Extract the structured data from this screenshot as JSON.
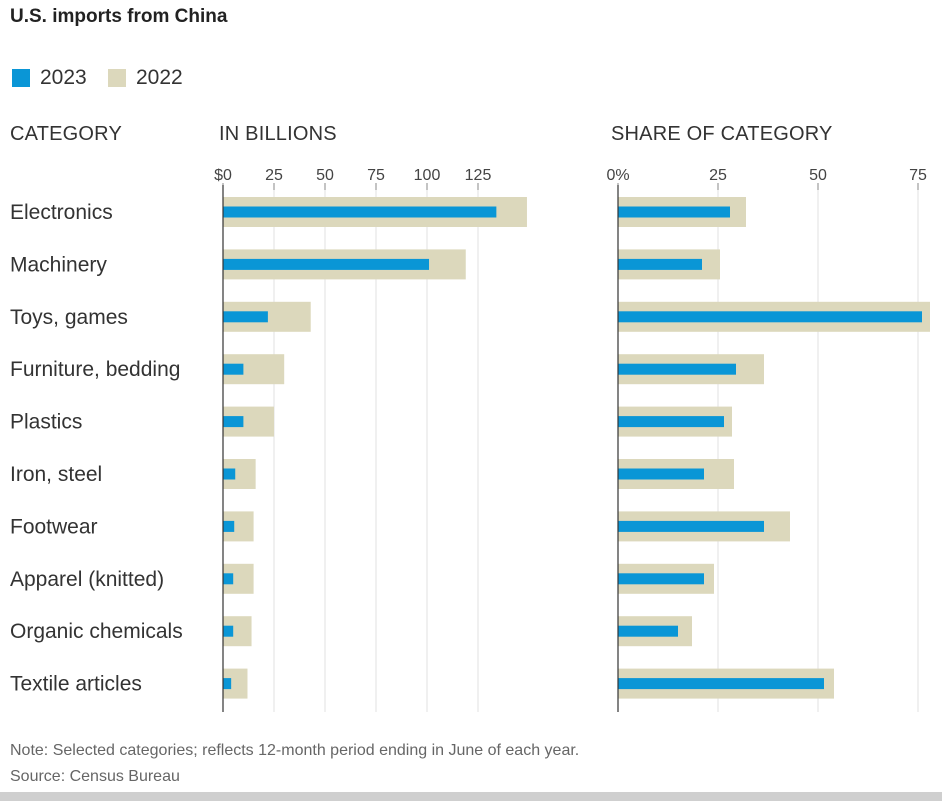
{
  "title": "U.S. imports from China",
  "legend": [
    {
      "label": "2023",
      "color": "#0a96d6"
    },
    {
      "label": "2022",
      "color": "#dcd8bc"
    }
  ],
  "headers": {
    "category": "CATEGORY",
    "billions": "IN BILLIONS",
    "share": "SHARE OF CATEGORY"
  },
  "chart_data": [
    {
      "type": "bar",
      "orientation": "horizontal",
      "title": "IN BILLIONS",
      "categories": [
        "Electronics",
        "Machinery",
        "Toys, games",
        "Furniture, bedding",
        "Plastics",
        "Iron, steel",
        "Footwear",
        "Apparel (knitted)",
        "Organic chemicals",
        "Textile articles"
      ],
      "series": [
        {
          "name": "2023",
          "color": "#0a96d6",
          "values": [
            134,
            101,
            22,
            10,
            10,
            6,
            5.5,
            5,
            5,
            4
          ]
        },
        {
          "name": "2022",
          "color": "#dcd8bc",
          "values": [
            149,
            119,
            43,
            30,
            25,
            16,
            15,
            15,
            14,
            12
          ]
        }
      ],
      "xlim": [
        0,
        150
      ],
      "ticks": [
        0,
        25,
        50,
        75,
        100,
        125
      ],
      "tick_labels": [
        "$0",
        "25",
        "50",
        "75",
        "100",
        "125"
      ],
      "grid": true
    },
    {
      "type": "bar",
      "orientation": "horizontal",
      "title": "SHARE OF CATEGORY",
      "categories": [
        "Electronics",
        "Machinery",
        "Toys, games",
        "Furniture, bedding",
        "Plastics",
        "Iron, steel",
        "Footwear",
        "Apparel (knitted)",
        "Organic chemicals",
        "Textile articles"
      ],
      "series": [
        {
          "name": "2023",
          "color": "#0a96d6",
          "values": [
            28,
            21,
            76,
            29.5,
            26.5,
            21.5,
            36.5,
            21.5,
            15,
            51.5
          ]
        },
        {
          "name": "2022",
          "color": "#dcd8bc",
          "values": [
            32,
            25.5,
            78,
            36.5,
            28.5,
            29,
            43,
            24,
            18.5,
            54
          ]
        }
      ],
      "xlim": [
        0,
        78
      ],
      "ticks": [
        0,
        25,
        50,
        75
      ],
      "tick_labels": [
        "0%",
        "25",
        "50",
        "75"
      ],
      "grid": true
    }
  ],
  "notes": {
    "note": "Note: Selected categories; reflects 12-month period ending in June of each year.",
    "source": "Source: Census Bureau"
  }
}
